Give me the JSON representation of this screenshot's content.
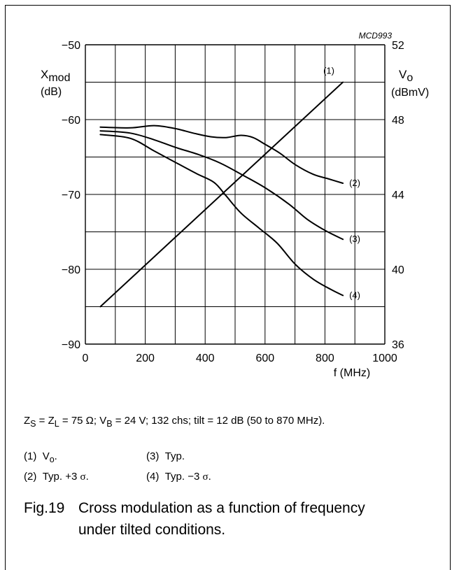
{
  "figure_code": "MCD993",
  "chart_data": {
    "type": "line",
    "title": "",
    "xlabel": "f (MHz)",
    "x_range": [
      0,
      1000
    ],
    "x_ticks": [
      0,
      200,
      400,
      600,
      800,
      1000
    ],
    "left_axis": {
      "label_main": "X",
      "label_sub": "mod",
      "unit": "(dB)",
      "range": [
        -90,
        -50
      ],
      "ticks": [
        -90,
        -80,
        -70,
        -60,
        -50
      ]
    },
    "right_axis": {
      "label_main": "V",
      "label_sub": "o",
      "unit": "(dBmV)",
      "range": [
        36,
        52
      ],
      "ticks": [
        36,
        40,
        44,
        48,
        52
      ]
    },
    "grid": true,
    "series": [
      {
        "name": "(1)",
        "axis": "right",
        "points": [
          [
            50,
            38
          ],
          [
            860,
            50
          ]
        ]
      },
      {
        "name": "(2)",
        "axis": "left",
        "points": [
          [
            50,
            -61
          ],
          [
            150,
            -61.1
          ],
          [
            230,
            -60.8
          ],
          [
            300,
            -61.2
          ],
          [
            360,
            -61.8
          ],
          [
            420,
            -62.3
          ],
          [
            470,
            -62.4
          ],
          [
            520,
            -62.1
          ],
          [
            560,
            -62.4
          ],
          [
            600,
            -63.3
          ],
          [
            650,
            -64.5
          ],
          [
            700,
            -66
          ],
          [
            760,
            -67.3
          ],
          [
            810,
            -67.9
          ],
          [
            860,
            -68.5
          ]
        ]
      },
      {
        "name": "(3)",
        "axis": "left",
        "points": [
          [
            50,
            -61.5
          ],
          [
            150,
            -61.8
          ],
          [
            230,
            -62.7
          ],
          [
            300,
            -63.7
          ],
          [
            380,
            -64.7
          ],
          [
            450,
            -65.8
          ],
          [
            520,
            -67.3
          ],
          [
            600,
            -69.1
          ],
          [
            680,
            -71.3
          ],
          [
            740,
            -73.3
          ],
          [
            800,
            -74.8
          ],
          [
            860,
            -76
          ]
        ]
      },
      {
        "name": "(4)",
        "axis": "left",
        "points": [
          [
            50,
            -62
          ],
          [
            150,
            -62.5
          ],
          [
            230,
            -64.2
          ],
          [
            300,
            -65.7
          ],
          [
            370,
            -67.2
          ],
          [
            430,
            -68.4
          ],
          [
            470,
            -70.2
          ],
          [
            520,
            -72.5
          ],
          [
            580,
            -74.5
          ],
          [
            640,
            -76.5
          ],
          [
            700,
            -79.3
          ],
          [
            760,
            -81.3
          ],
          [
            820,
            -82.7
          ],
          [
            860,
            -83.5
          ]
        ]
      }
    ]
  },
  "conditions": {
    "p1": "Z",
    "p1_sub": "S",
    "p2": " = Z",
    "p2_sub": "L",
    "p3": " = 75 Ω; V",
    "p3_sub": "B",
    "p4": " = 24 V; 132 chs; tilt = 12 dB (50 to 870 MHz)."
  },
  "legend": [
    {
      "key": "(1)",
      "main": "V",
      "sub": "o",
      "tail": "."
    },
    {
      "key": "(2)",
      "main": "Typ. +3 ",
      "sym": "σ",
      "tail": "."
    },
    {
      "key": "(3)",
      "main": "Typ.",
      "sym": "",
      "tail": ""
    },
    {
      "key": "(4)",
      "main": "Typ. −3 ",
      "sym": "σ",
      "tail": "."
    }
  ],
  "caption": {
    "label": "Fig.19",
    "line1": "Cross modulation as a function of frequency",
    "line2": "under tilted conditions."
  }
}
